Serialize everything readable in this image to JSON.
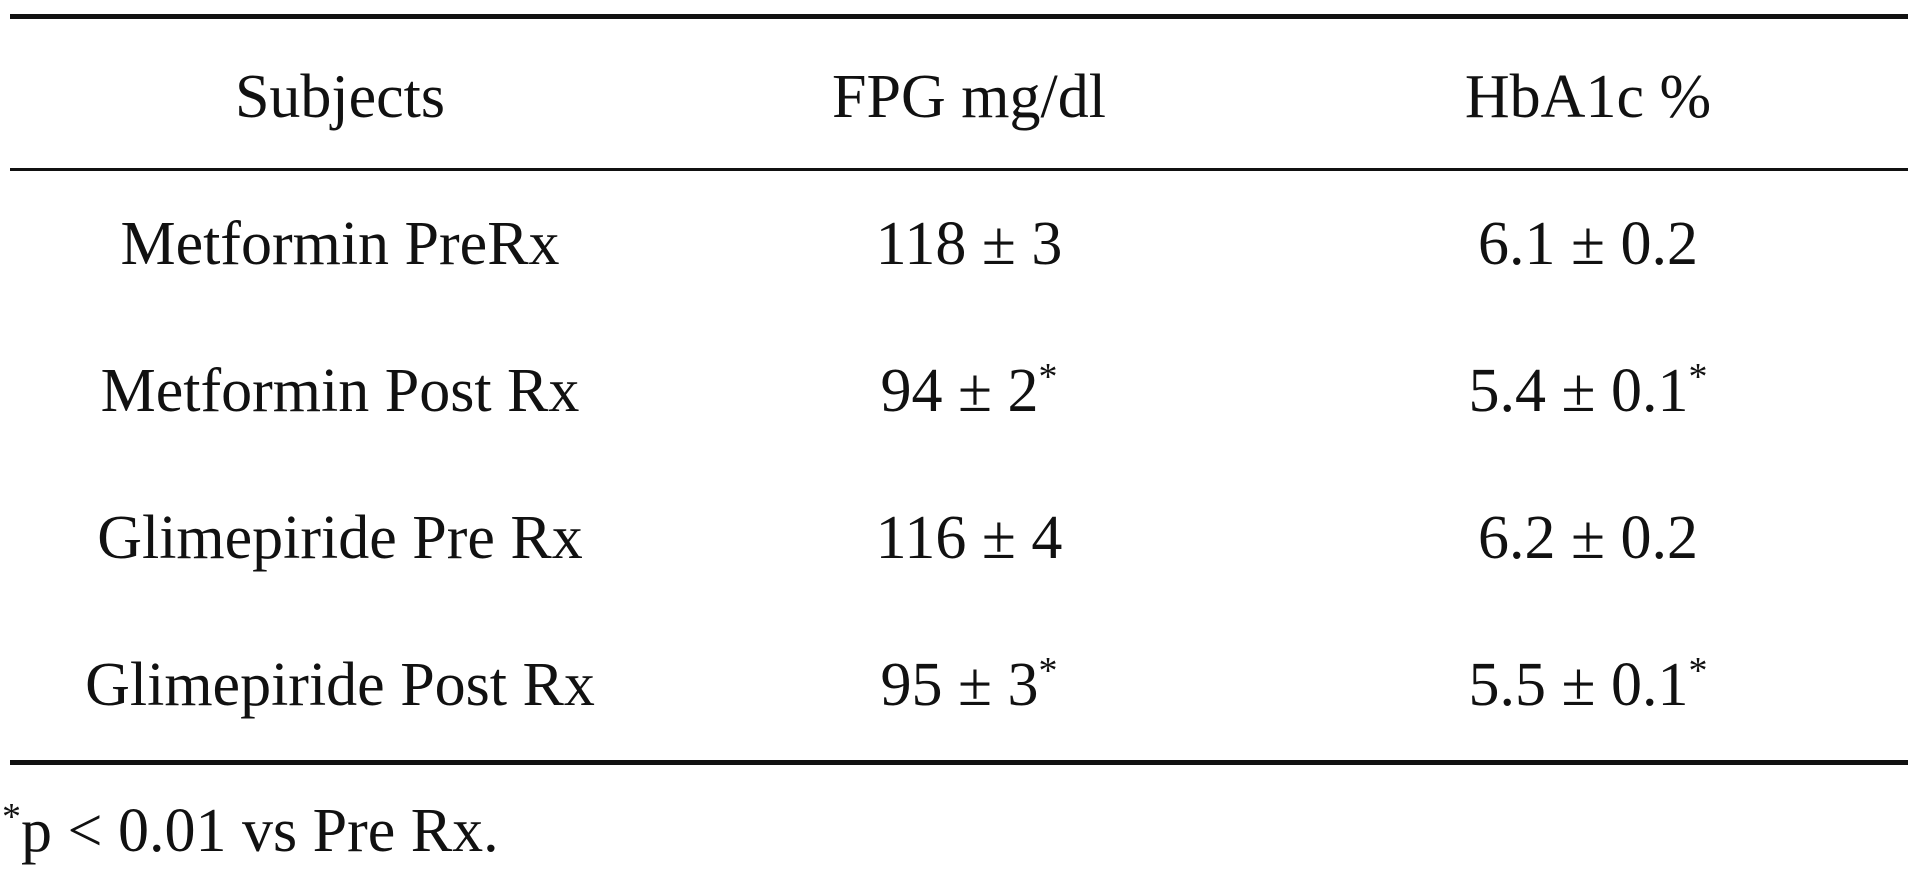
{
  "table": {
    "headers": [
      "Subjects",
      "FPG mg/dl",
      "HbA1c %"
    ],
    "rows": [
      {
        "subject": "Metformin PreRx",
        "fpg": "118 ± 3",
        "fpg_mark": "",
        "hba1c": "6.1 ± 0.2",
        "hba1c_mark": ""
      },
      {
        "subject": "Metformin Post Rx",
        "fpg": "94 ± 2",
        "fpg_mark": "*",
        "hba1c": "5.4 ± 0.1",
        "hba1c_mark": "*"
      },
      {
        "subject": "Glimepiride Pre Rx",
        "fpg": "116 ± 4",
        "fpg_mark": "",
        "hba1c": "6.2 ± 0.2",
        "hba1c_mark": ""
      },
      {
        "subject": "Glimepiride Post Rx",
        "fpg": "95 ± 3",
        "fpg_mark": "*",
        "hba1c": "5.5 ± 0.1",
        "hba1c_mark": "*"
      }
    ]
  },
  "footnote": {
    "mark": "*",
    "text": "p < 0.01 vs Pre Rx."
  }
}
